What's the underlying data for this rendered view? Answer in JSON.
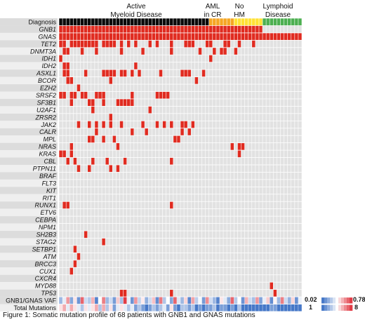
{
  "chart_data": {
    "type": "heatmap",
    "title": "",
    "n_patients": 68,
    "groups": [
      {
        "label_lines": [
          "Active",
          "Myeloid Disease"
        ],
        "count": 42,
        "color": "#0a0a0a"
      },
      {
        "label_lines": [
          "AML",
          "in CR"
        ],
        "count": 7,
        "color": "#f5a623"
      },
      {
        "label_lines": [
          "No",
          "HM"
        ],
        "count": 8,
        "color": "#ffe234"
      },
      {
        "label_lines": [
          "Lymphoid",
          "Disease"
        ],
        "count": 11,
        "color": "#4caf50"
      }
    ],
    "header_row_label": "Diagnosis",
    "row_labels": [
      "GNB1",
      "GNAS",
      "TET2",
      "DNMT3A",
      "IDH1",
      "IDH2",
      "ASXL1",
      "BCOR",
      "EZH2",
      "SRSF2",
      "SF3B1",
      "U2AF1",
      "ZRSR2",
      "JAK2",
      "CALR",
      "MPL",
      "NRAS",
      "KRAS",
      "CBL",
      "PTPN11",
      "BRAF",
      "FLT3",
      "KIT",
      "RIT1",
      "RUNX1",
      "ETV6",
      "CEBPA",
      "NPM1",
      "SH2B3",
      "STAG2",
      "SETBP1",
      "ATM",
      "BRCC3",
      "CUX1",
      "CXCR4",
      "MYD88",
      "TP53"
    ],
    "mutations": {
      "GNB1": [
        0,
        1,
        2,
        3,
        4,
        5,
        6,
        7,
        8,
        9,
        10,
        11,
        12,
        13,
        14,
        15,
        16,
        17,
        18,
        19,
        20,
        21,
        22,
        23,
        24,
        25,
        26,
        27,
        28,
        29,
        30,
        31,
        32,
        33,
        34,
        35,
        36,
        37,
        38,
        39,
        40,
        41,
        42,
        43,
        44,
        45,
        46,
        47,
        48,
        49,
        50,
        51,
        52,
        53,
        54,
        55,
        56
      ],
      "GNAS": [
        0,
        1,
        2,
        3,
        4,
        5,
        6,
        7,
        8,
        9,
        10,
        11,
        12,
        13,
        14,
        15,
        16,
        17,
        18,
        19,
        20,
        21,
        22,
        23,
        24,
        25,
        26,
        27,
        28,
        29,
        30,
        31,
        32,
        33,
        34,
        35,
        36,
        37,
        38,
        39,
        40,
        41,
        42,
        43,
        44,
        45,
        46,
        47,
        48,
        49,
        50,
        51,
        52,
        53,
        54,
        55,
        56,
        57,
        58,
        59,
        60,
        61,
        62,
        63,
        64,
        65,
        66,
        67
      ],
      "TET2": [
        0,
        1,
        3,
        4,
        5,
        6,
        7,
        8,
        9,
        10,
        12,
        13,
        14,
        15,
        17,
        19,
        21,
        25,
        27,
        31,
        35,
        36,
        37,
        41,
        42,
        46,
        47,
        50,
        54
      ],
      "DNMT3A": [
        1,
        2,
        6,
        10,
        17,
        23,
        31,
        39,
        43,
        45,
        46,
        49
      ],
      "IDH1": [
        0,
        42
      ],
      "IDH2": [
        1,
        2,
        21
      ],
      "ASXL1": [
        1,
        2,
        7,
        12,
        13,
        14,
        15,
        17,
        18,
        20,
        22,
        28,
        34,
        35,
        36,
        40
      ],
      "BCOR": [
        2,
        3,
        14,
        38
      ],
      "EZH2": [
        5
      ],
      "SRSF2": [
        0,
        1,
        3,
        4,
        6,
        7,
        10,
        11,
        12,
        20,
        27,
        28,
        29,
        30
      ],
      "SF3B1": [
        3,
        8,
        9,
        12,
        16,
        17,
        18,
        19,
        20
      ],
      "U2AF1": [
        9,
        25
      ],
      "ZRSR2": [
        14
      ],
      "JAK2": [
        5,
        8,
        10,
        12,
        14,
        17,
        23,
        27,
        29,
        31,
        34,
        35,
        37
      ],
      "CALR": [
        10,
        20,
        24,
        34,
        36
      ],
      "MPL": [
        8,
        9,
        12,
        15,
        32,
        33
      ],
      "NRAS": [
        3,
        16,
        48,
        50,
        51
      ],
      "KRAS": [
        0,
        1,
        3,
        50
      ],
      "CBL": [
        2,
        4,
        9,
        13,
        18,
        31
      ],
      "PTPN11": [
        5,
        8,
        14,
        16
      ],
      "BRAF": [],
      "FLT3": [],
      "KIT": [],
      "RIT1": [],
      "RUNX1": [
        1,
        2,
        31
      ],
      "ETV6": [],
      "CEBPA": [],
      "NPM1": [],
      "SH2B3": [
        7
      ],
      "STAG2": [
        12
      ],
      "SETBP1": [
        4
      ],
      "ATM": [
        5
      ],
      "BRCC3": [
        4
      ],
      "CUX1": [
        3
      ],
      "CXCR4": [],
      "MYD88": [
        59
      ],
      "TP53": [
        17,
        18,
        31,
        60
      ]
    },
    "heat_rows": [
      {
        "label": "GNB1/GNAS VAF",
        "min": 0.02,
        "max": 0.78
      },
      {
        "label": "Total Mutations",
        "min": 1,
        "max": 8
      }
    ],
    "vaf_values": [
      0.2,
      0.35,
      0.6,
      0.15,
      0.45,
      0.1,
      0.7,
      0.3,
      0.25,
      0.55,
      0.05,
      0.4,
      0.65,
      0.2,
      0.3,
      0.12,
      0.5,
      0.22,
      0.78,
      0.35,
      0.1,
      0.6,
      0.28,
      0.44,
      0.18,
      0.3,
      0.52,
      0.08,
      0.66,
      0.24,
      0.4,
      0.15,
      0.7,
      0.33,
      0.2,
      0.48,
      0.06,
      0.58,
      0.26,
      0.38,
      0.12,
      0.62,
      0.3,
      0.2,
      0.05,
      0.45,
      0.34,
      0.16,
      0.7,
      0.25,
      0.4,
      0.1,
      0.55,
      0.3,
      0.22,
      0.6,
      0.14,
      0.35,
      0.5,
      0.08,
      0.42,
      0.2,
      0.65,
      0.3,
      0.18,
      0.48,
      0.1,
      0.36
    ],
    "total_mut_values": [
      5,
      6,
      4,
      6,
      5,
      4,
      3,
      5,
      4,
      5,
      6,
      3,
      6,
      3,
      5,
      2,
      4,
      5,
      4,
      3,
      4,
      2,
      3,
      2,
      1,
      2,
      3,
      2,
      3,
      4,
      2,
      5,
      2,
      1,
      3,
      3,
      2,
      3,
      1,
      2,
      1,
      2,
      2,
      3,
      1,
      2,
      2,
      1,
      2,
      1,
      3,
      1,
      1,
      1,
      1,
      1,
      1,
      1,
      1,
      2,
      2,
      1,
      1,
      1,
      1,
      1,
      1,
      1
    ],
    "mutation_color": "#e02b20",
    "empty_color": "#e2e2e2",
    "caption": "Figure 1: Somatic mutation profile of 68 patients with GNB1 and GNAS mutations"
  }
}
